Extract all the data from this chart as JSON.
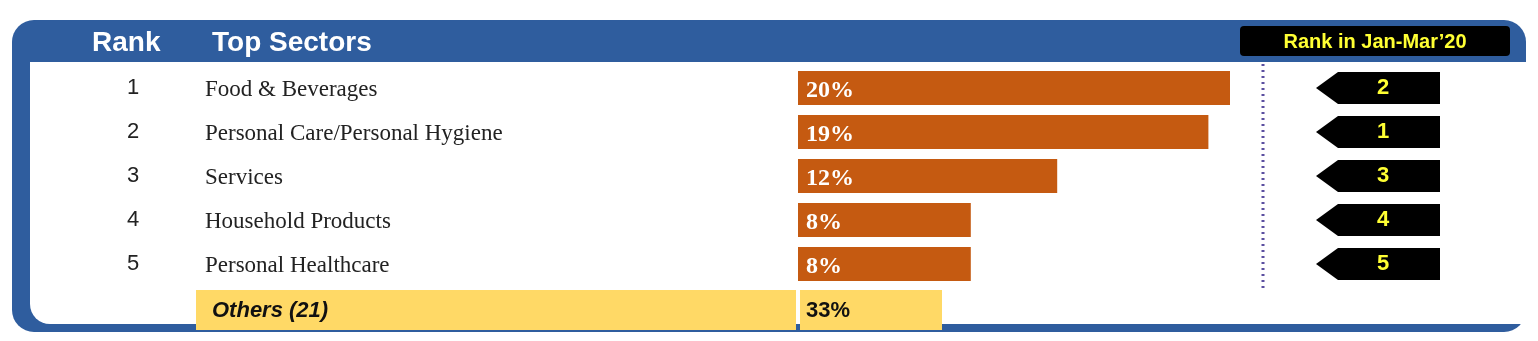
{
  "chart_data": {
    "type": "bar",
    "orientation": "horizontal",
    "title": "Top Sectors",
    "categories": [
      "Food & Beverages",
      "Personal Care/Personal Hygiene",
      "Services",
      "Household Products",
      "Personal Healthcare"
    ],
    "values": [
      20,
      19,
      12,
      8,
      8
    ],
    "value_labels": [
      "20%",
      "19%",
      "12%",
      "8%",
      "8%"
    ],
    "color": "#c55a11",
    "annotations": [
      "Rank",
      "Rank in Jan-Mar’20",
      "Others (21)",
      "33%",
      "1",
      "2",
      "3",
      "4",
      "5",
      "2",
      "1",
      "3",
      "4",
      "5"
    ]
  }
}
